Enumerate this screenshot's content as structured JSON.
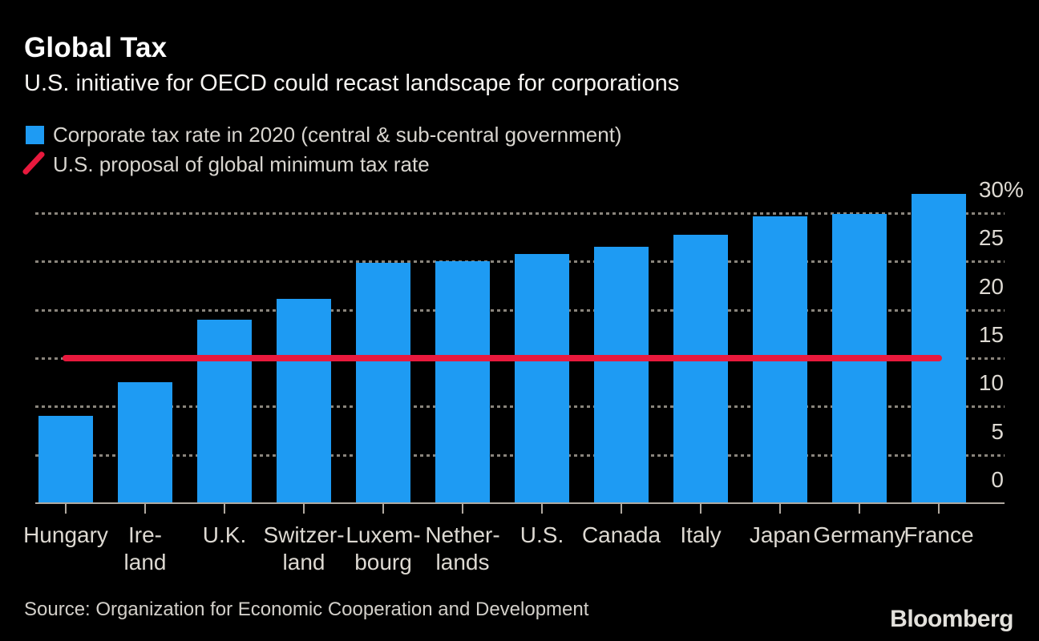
{
  "header": {
    "title": "Global Tax",
    "subtitle": "U.S. initiative for OECD could recast landscape for corporations"
  },
  "legend": {
    "items": [
      {
        "label": "Corporate tax rate in 2020 (central & sub-central government)",
        "marker": "square",
        "color": "#1e9bf3"
      },
      {
        "label": "U.S. proposal of global minimum tax rate",
        "marker": "diagonal-line",
        "color": "#e8193d"
      }
    ]
  },
  "footer": {
    "source": "Source: Organization for Economic Cooperation and Development",
    "brand": "Bloomberg"
  },
  "colors": {
    "background": "#000000",
    "bar": "#1e9bf3",
    "reference_line": "#e8193d",
    "grid": "#8a857c",
    "axis": "#b0a9a0",
    "y_label": "#ddd9d2",
    "x_label": "#ddd9d2"
  },
  "chart_data": {
    "type": "bar",
    "title": "Global Tax",
    "subtitle": "U.S. initiative for OECD could recast landscape for corporations",
    "categories": [
      "Hungary",
      "Ireland",
      "U.K.",
      "Switzerland",
      "Luxembourg",
      "Netherlands",
      "U.S.",
      "Canada",
      "Italy",
      "Japan",
      "Germany",
      "France"
    ],
    "category_display_lines": [
      [
        "Hungary"
      ],
      [
        "Ire-",
        "land"
      ],
      [
        "U.K."
      ],
      [
        "Switzer-",
        "land"
      ],
      [
        "Luxem-",
        "bourg"
      ],
      [
        "Nether-",
        "lands"
      ],
      [
        "U.S."
      ],
      [
        "Canada"
      ],
      [
        "Italy"
      ],
      [
        "Japan"
      ],
      [
        "Germany"
      ],
      [
        "France"
      ]
    ],
    "series": [
      {
        "name": "Corporate tax rate in 2020 (central & sub-central government)",
        "type": "bar",
        "color": "#1e9bf3",
        "values": [
          9,
          12.5,
          19,
          21.1,
          24.9,
          25,
          25.8,
          26.5,
          27.8,
          29.7,
          29.9,
          32
        ]
      }
    ],
    "reference_line": {
      "name": "U.S. proposal of global minimum tax rate",
      "value": 15,
      "color": "#e8193d"
    },
    "xlabel": "",
    "ylabel": "",
    "ylim": [
      0,
      32.5
    ],
    "yticks": [
      0,
      5,
      10,
      15,
      20,
      25,
      30
    ],
    "ytick_labels": [
      "0",
      "5",
      "10",
      "15",
      "20",
      "25",
      "30%"
    ],
    "grid": "dotted-horizontal",
    "axis_side": "right",
    "legend_position": "top-left",
    "source": "Source: Organization for Economic Cooperation and Development"
  }
}
